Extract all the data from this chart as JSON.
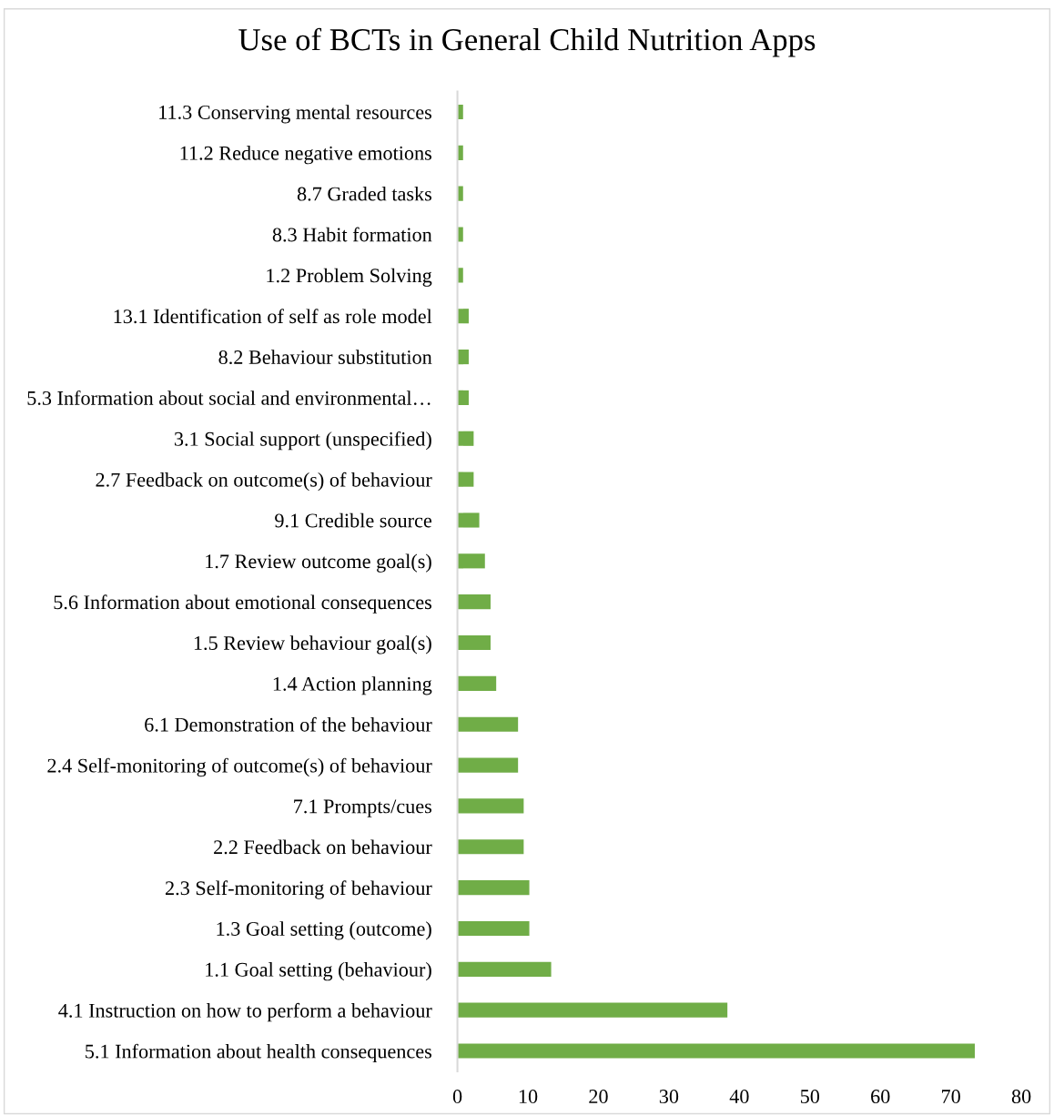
{
  "chart_data": {
    "type": "bar",
    "orientation": "horizontal",
    "title": "Use of BCTs in General Child Nutrition Apps",
    "categories": [
      "11.3 Conserving mental resources",
      "11.2 Reduce negative emotions",
      "8.7 Graded tasks",
      "8.3 Habit formation",
      "1.2 Problem Solving",
      "13.1 Identification of self as role model",
      "8.2 Behaviour substitution",
      "5.3 Information about social and environmental…",
      "3.1 Social support (unspecified)",
      "2.7 Feedback on outcome(s) of behaviour",
      "9.1 Credible source",
      "1.7 Review outcome goal(s)",
      "5.6 Information about emotional consequences",
      "1.5 Review behaviour goal(s)",
      "1.4 Action planning",
      "6.1 Demonstration of the behaviour",
      "2.4 Self-monitoring of outcome(s) of behaviour",
      "7.1 Prompts/cues",
      "2.2 Feedback on behaviour",
      "2.3 Self-monitoring of behaviour",
      "1.3 Goal setting (outcome)",
      "1.1 Goal setting (behaviour)",
      "4.1 Instruction on how to perform a behaviour",
      "5.1 Information about health consequences"
    ],
    "values": [
      0.8,
      0.8,
      0.8,
      0.8,
      0.8,
      1.6,
      1.6,
      1.6,
      2.3,
      2.3,
      3.1,
      3.9,
      4.7,
      4.7,
      5.5,
      8.6,
      8.6,
      9.4,
      9.4,
      10.2,
      10.2,
      13.3,
      38.3,
      73.4
    ],
    "color": "#70ad47",
    "xlim": [
      0,
      80
    ],
    "xticks": [
      0,
      10,
      20,
      30,
      40,
      50,
      60,
      70,
      80
    ],
    "grid": false
  }
}
